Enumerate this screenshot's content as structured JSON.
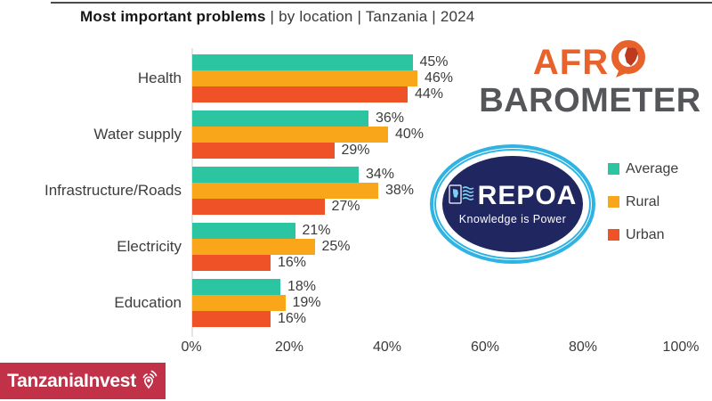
{
  "title": {
    "main": "Most important problems",
    "rest": "|  by location  |  Tanzania  |  2024"
  },
  "chart_data": {
    "type": "bar",
    "orientation": "horizontal",
    "title": "Most important problems | by location | Tanzania | 2024",
    "categories": [
      "Health",
      "Water supply",
      "Infrastructure/Roads",
      "Electricity",
      "Education"
    ],
    "series": [
      {
        "name": "Average",
        "color": "#2CC5A2",
        "values": [
          45,
          36,
          34,
          21,
          18
        ]
      },
      {
        "name": "Rural",
        "color": "#FAA61B",
        "values": [
          46,
          40,
          38,
          25,
          19
        ]
      },
      {
        "name": "Urban",
        "color": "#EE5226",
        "values": [
          44,
          29,
          27,
          16,
          16
        ]
      }
    ],
    "value_suffix": "%",
    "x_ticks": [
      "0%",
      "20%",
      "40%",
      "60%",
      "80%",
      "100%"
    ],
    "xlim": [
      0,
      100
    ],
    "grid": false,
    "legend_position": "right"
  },
  "logos": {
    "afrobarometer": {
      "word1": "AFR",
      "word2": "BAROMETER",
      "accent_color": "#E8632C",
      "text_color": "#55565A"
    },
    "repoa": {
      "name": "REPOA",
      "tagline": "Knowledge is Power",
      "navy_color": "#20265F",
      "blue_color": "#2FB3E3"
    },
    "tanzaniainvest": {
      "text": "TanzaniaInvest",
      "bg_color": "#C13249"
    }
  }
}
